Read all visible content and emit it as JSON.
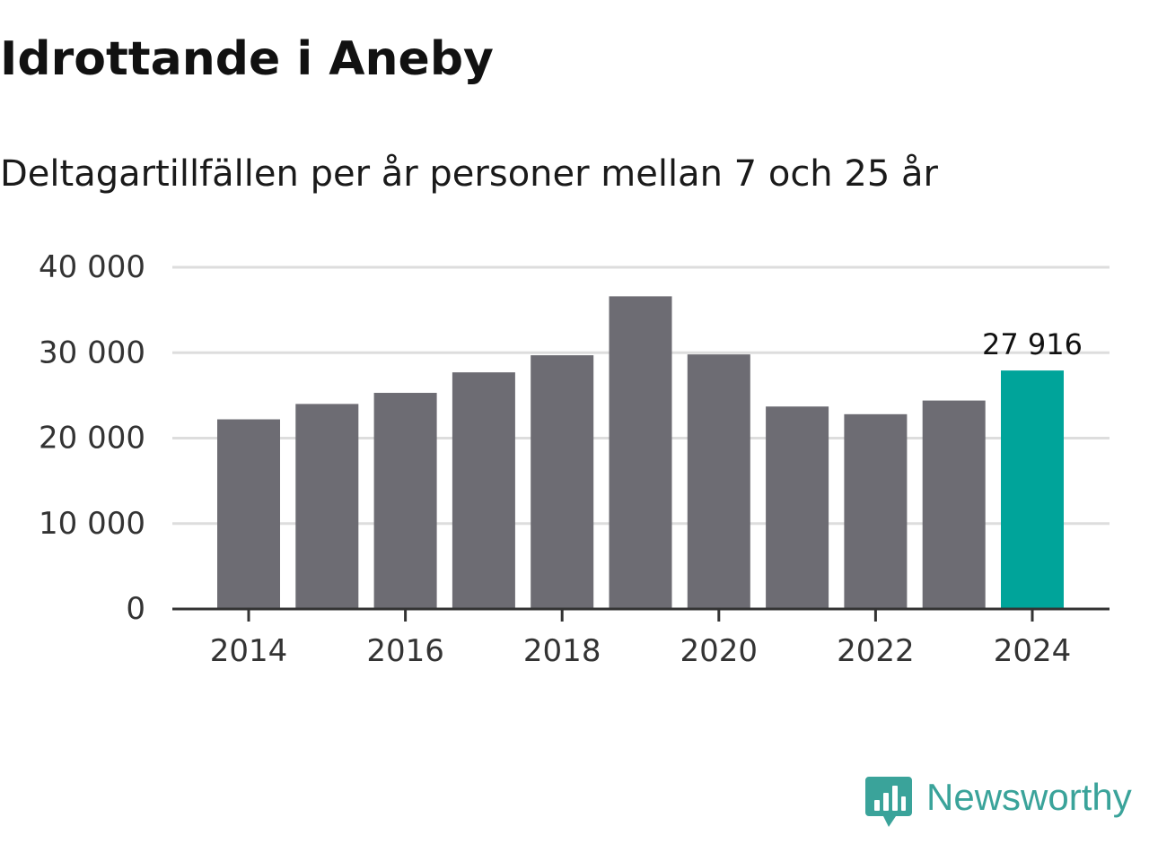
{
  "header": {
    "title": "Idrottande i Aneby",
    "subtitle": "Deltagartillfällen per år personer mellan 7 och 25 år"
  },
  "logo": {
    "name": "Newsworthy",
    "icon": "bar-chart-speech-bubble-icon"
  },
  "colors": {
    "bar": "#6d6c73",
    "highlight": "#00a49a",
    "grid": "#dddddd",
    "axis": "#333333",
    "tick_text": "#333333",
    "brand": "#3aa39a"
  },
  "chart_data": {
    "type": "bar",
    "title": "Idrottande i Aneby",
    "subtitle": "Deltagartillfällen per år personer mellan 7 och 25 år",
    "xlabel": "",
    "ylabel": "",
    "categories": [
      "2014",
      "2015",
      "2016",
      "2017",
      "2018",
      "2019",
      "2020",
      "2021",
      "2022",
      "2023",
      "2024"
    ],
    "values": [
      22200,
      24000,
      25300,
      27700,
      29700,
      36600,
      29800,
      23700,
      22800,
      24400,
      27916
    ],
    "highlight_index": 10,
    "highlight_label": "27 916",
    "ylim": [
      0,
      40000
    ],
    "yticks": [
      0,
      10000,
      20000,
      30000,
      40000
    ],
    "ytick_labels": [
      "0",
      "10 000",
      "20 000",
      "30 000",
      "40 000"
    ],
    "xtick_labels": [
      "2014",
      "2016",
      "2018",
      "2020",
      "2022",
      "2024"
    ],
    "grid": true,
    "legend": "none"
  }
}
